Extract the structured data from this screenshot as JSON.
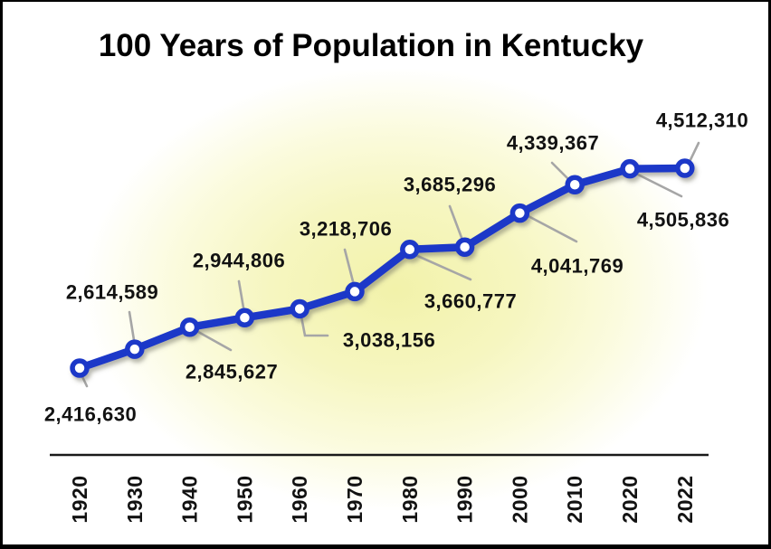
{
  "title": "100 Years of Population in Kentucky",
  "chart_data": {
    "type": "line",
    "title": "100 Years of Population in Kentucky",
    "categories": [
      "1920",
      "1930",
      "1940",
      "1950",
      "1960",
      "1970",
      "1980",
      "1990",
      "2000",
      "2010",
      "2020",
      "2022"
    ],
    "series": [
      {
        "name": "Population",
        "values": [
          2416630,
          2614589,
          2845627,
          2944806,
          3038156,
          3218706,
          3660777,
          3685296,
          4041769,
          4339367,
          4505836,
          4512310
        ]
      }
    ],
    "data_labels": [
      "2,416,630",
      "2,614,589",
      "2,845,627",
      "2,944,806",
      "3,038,156",
      "3,218,706",
      "3,660,777",
      "3,685,296",
      "4,041,769",
      "4,339,367",
      "4,505,836",
      "4,512,310"
    ],
    "label_sides": [
      "below",
      "above",
      "below",
      "above",
      "below",
      "above",
      "below",
      "above",
      "below",
      "above",
      "below",
      "above"
    ],
    "xlabel": "",
    "ylabel": "",
    "legend": "none",
    "grid": false,
    "y_axis": "hidden",
    "x_axis_line": true,
    "x_tick_rotation_deg": -90,
    "marker": "open-circle",
    "line_color": "#1A38C8",
    "marker_fill": "#FFFFFF",
    "leader_line_color": "#A6A6A6",
    "axis_color": "#1A1A1A",
    "background_glow_color": "#F2F2AA",
    "text_color": "#121212",
    "frame_border_color": "#000000"
  }
}
